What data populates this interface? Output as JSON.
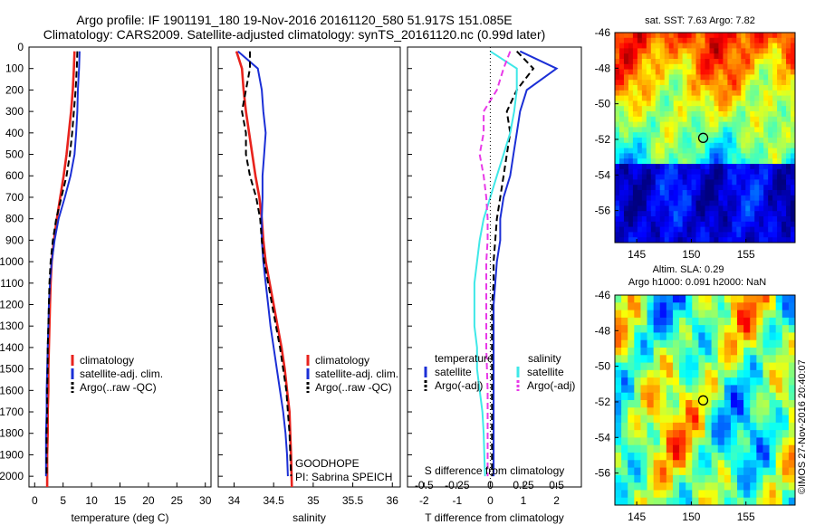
{
  "title_line1": "Argo profile: IF 1901191_180 19-Nov-2016 20161120_580 51.917S 151.085E",
  "title_line2": "Climatology: CARS2009. Satellite-adjusted climatology: synTS_20161120.nc (0.99d later)",
  "copyright": "©IMOS 27-Nov-2016 20:40:07",
  "colors": {
    "climatology": "#e8231d",
    "satellite": "#1b2fd6",
    "argo": "#000000",
    "sal_sat": "#3fe8e8",
    "sal_argo": "#e83ae8"
  },
  "chart_data": [
    {
      "type": "line",
      "id": "temperature",
      "xlabel": "temperature (deg C)",
      "xlim": [
        -1,
        31
      ],
      "ylim": [
        0,
        2050
      ],
      "xticks": [
        "0",
        "5",
        "10",
        "15",
        "20",
        "25",
        "30"
      ],
      "yticks": [
        "0",
        "100",
        "200",
        "300",
        "400",
        "500",
        "600",
        "700",
        "800",
        "900",
        "1000",
        "1100",
        "1200",
        "1300",
        "1400",
        "1500",
        "1600",
        "1700",
        "1800",
        "1900",
        "2000"
      ],
      "legend": [
        "climatology",
        "satellite-adj. clim.",
        "Argo(..raw -QC)"
      ],
      "series": [
        {
          "name": "climatology",
          "x": [
            7.0,
            6.9,
            6.7,
            6.4,
            6.0,
            5.6,
            5.1,
            4.5,
            3.9,
            3.4,
            3.0,
            2.8,
            2.7,
            2.6,
            2.5,
            2.4,
            2.4,
            2.3,
            2.3,
            2.2,
            2.2
          ],
          "y": [
            20,
            100,
            200,
            300,
            400,
            500,
            600,
            700,
            800,
            900,
            1000,
            1100,
            1200,
            1300,
            1400,
            1500,
            1600,
            1700,
            1800,
            1900,
            2050
          ]
        },
        {
          "name": "satellite-adj. clim.",
          "x": [
            7.9,
            7.8,
            7.6,
            7.5,
            7.3,
            7.0,
            6.3,
            5.3,
            4.2,
            3.5,
            3.0,
            2.7,
            2.5,
            2.4,
            2.3,
            2.2,
            2.1,
            2.1,
            2.0,
            2.0,
            2.0
          ],
          "y": [
            20,
            100,
            200,
            300,
            400,
            500,
            600,
            700,
            800,
            900,
            1000,
            1100,
            1200,
            1300,
            1400,
            1500,
            1600,
            1700,
            1800,
            1900,
            2000
          ]
        },
        {
          "name": "Argo(..raw -QC)",
          "x": [
            7.5,
            7.4,
            7.2,
            6.9,
            6.6,
            6.2,
            5.6,
            4.7,
            3.8,
            3.2,
            2.8,
            2.6,
            2.5,
            2.4,
            2.3,
            2.3,
            2.2,
            2.2,
            2.1,
            2.1,
            2.1
          ],
          "y": [
            20,
            100,
            200,
            300,
            400,
            500,
            600,
            700,
            800,
            900,
            1000,
            1100,
            1200,
            1300,
            1400,
            1500,
            1600,
            1700,
            1800,
            1900,
            2000
          ]
        }
      ]
    },
    {
      "type": "line",
      "id": "salinity",
      "xlabel": "salinity",
      "xlim": [
        33.8,
        36.1
      ],
      "ylim": [
        0,
        2050
      ],
      "xticks": [
        "34",
        "34.5",
        "35",
        "35.5",
        "36"
      ],
      "legend": [
        "climatology",
        "satellite-adj. clim.",
        "Argo(..raw -QC)"
      ],
      "annotation": [
        "GOODHOPE",
        "PI: Sabrina SPEICH"
      ],
      "series": [
        {
          "name": "climatology",
          "x": [
            34.03,
            34.1,
            34.12,
            34.15,
            34.19,
            34.23,
            34.27,
            34.32,
            34.35,
            34.37,
            34.4,
            34.45,
            34.5,
            34.55,
            34.6,
            34.64,
            34.67,
            34.7,
            34.71,
            34.72,
            34.73
          ],
          "y": [
            20,
            100,
            200,
            300,
            400,
            500,
            600,
            700,
            800,
            900,
            1000,
            1100,
            1200,
            1300,
            1400,
            1500,
            1600,
            1700,
            1800,
            1900,
            2050
          ]
        },
        {
          "name": "satellite-adj. clim.",
          "x": [
            34.05,
            34.3,
            34.35,
            34.37,
            34.4,
            34.38,
            34.36,
            34.36,
            34.35,
            34.35,
            34.37,
            34.4,
            34.43,
            34.46,
            34.5,
            34.54,
            34.58,
            34.62,
            34.65,
            34.67,
            34.68
          ],
          "y": [
            20,
            100,
            200,
            300,
            400,
            500,
            600,
            700,
            800,
            900,
            1000,
            1100,
            1200,
            1300,
            1400,
            1500,
            1600,
            1700,
            1800,
            1900,
            2000
          ]
        },
        {
          "name": "Argo(..raw -QC)",
          "x": [
            34.2,
            34.2,
            34.15,
            34.1,
            34.15,
            34.15,
            34.2,
            34.28,
            34.33,
            34.35,
            34.38,
            34.43,
            34.48,
            34.53,
            34.58,
            34.62,
            34.66,
            34.68,
            34.7,
            34.71,
            34.72
          ],
          "y": [
            20,
            100,
            200,
            300,
            400,
            500,
            600,
            700,
            800,
            900,
            1000,
            1100,
            1200,
            1300,
            1400,
            1500,
            1600,
            1700,
            1800,
            1900,
            2000
          ]
        }
      ]
    },
    {
      "type": "line",
      "id": "difference",
      "xlabel": "T difference from climatology",
      "xlabel2": "S difference from climatology",
      "xlim": [
        -2.5,
        2.75
      ],
      "ylim": [
        0,
        2050
      ],
      "xticks": [
        "-2",
        "-1",
        "0",
        "1",
        "2"
      ],
      "xticks_S": [
        "-0.5",
        "-0.25",
        "0",
        "0.25",
        "0.5"
      ],
      "legend_t_title": "temperature",
      "legend_s_title": "salinity",
      "legend": [
        "satellite",
        "Argo(-adj)",
        "satellite",
        "Argo(-adj)"
      ],
      "series": [
        {
          "name": "satellite",
          "quantity": "T",
          "x": [
            0.9,
            2.0,
            1.1,
            0.9,
            0.8,
            0.7,
            0.6,
            0.4,
            0.3,
            0.3,
            0.2,
            0.15,
            0.1,
            0.1,
            0.1,
            0.1,
            0.1,
            0.1,
            0.1,
            0.1
          ],
          "y": [
            20,
            100,
            200,
            300,
            400,
            500,
            600,
            700,
            800,
            900,
            1000,
            1100,
            1200,
            1300,
            1400,
            1500,
            1600,
            1700,
            1800,
            2000
          ]
        },
        {
          "name": "Argo(-adj)",
          "quantity": "T",
          "x": [
            0.8,
            1.3,
            0.8,
            0.5,
            0.6,
            0.5,
            0.4,
            0.3,
            0.2,
            0.15,
            0.1,
            0.1,
            0.05,
            0.05,
            0.05,
            0.05,
            0.05,
            0.05
          ],
          "y": [
            20,
            100,
            200,
            300,
            400,
            500,
            600,
            700,
            800,
            900,
            1000,
            1100,
            1200,
            1300,
            1400,
            1600,
            1800,
            2000
          ]
        },
        {
          "name": "satellite",
          "quantity": "S",
          "x": [
            0.0,
            0.2,
            0.2,
            0.18,
            0.15,
            0.1,
            0.05,
            0.0,
            -0.05,
            -0.08,
            -0.1,
            -0.12,
            -0.12,
            -0.12,
            -0.1,
            -0.1,
            -0.08,
            -0.06,
            -0.05,
            -0.04
          ],
          "y": [
            20,
            100,
            200,
            300,
            400,
            500,
            600,
            700,
            800,
            900,
            1000,
            1100,
            1200,
            1300,
            1400,
            1500,
            1600,
            1700,
            1800,
            2000
          ]
        },
        {
          "name": "Argo(-adj)",
          "quantity": "S",
          "x": [
            0.15,
            0.1,
            0.05,
            -0.05,
            -0.05,
            -0.08,
            -0.05,
            -0.03,
            -0.02,
            -0.02,
            -0.03,
            -0.03,
            -0.03,
            -0.03,
            -0.03,
            -0.02,
            -0.02,
            -0.02
          ],
          "y": [
            20,
            100,
            200,
            300,
            400,
            500,
            600,
            700,
            800,
            900,
            1000,
            1100,
            1200,
            1300,
            1400,
            1600,
            1800,
            2000
          ]
        }
      ]
    },
    {
      "type": "heatmap",
      "id": "sst_map",
      "title": "sat. SST: 7.63 Argo: 7.82",
      "xticks": [
        "145",
        "150",
        "155"
      ],
      "yticks": [
        "-46",
        "-48",
        "-50",
        "-52",
        "-54",
        "-56"
      ],
      "xlim": [
        143,
        159.5
      ],
      "ylim": [
        -57.8,
        -46
      ],
      "marker": {
        "lon": 151.085,
        "lat": -51.917
      }
    },
    {
      "type": "heatmap",
      "id": "sla_map",
      "title": "Altim. SLA: 0.29",
      "subtitle": "Argo h1000: 0.091 h2000: NaN",
      "xticks": [
        "145",
        "150",
        "155"
      ],
      "yticks": [
        "-46",
        "-48",
        "-50",
        "-52",
        "-54",
        "-56"
      ],
      "xlim": [
        143,
        159.5
      ],
      "ylim": [
        -57.8,
        -46
      ],
      "marker": {
        "lon": 151.085,
        "lat": -51.917
      }
    }
  ]
}
